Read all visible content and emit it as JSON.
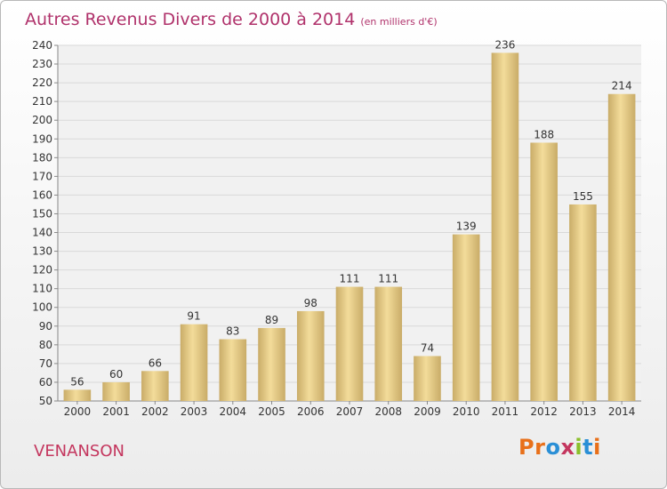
{
  "page": {
    "title": "Autres Revenus Divers de 2000 à 2014",
    "subtitle": "(en milliers d'€)",
    "commune": "VENANSON",
    "logo_text": "Proxiti"
  },
  "colors": {
    "title": "#b0326b",
    "commune": "#c4365e",
    "bar_light": "#f3dc9a",
    "bar_dark": "#c9ac68",
    "grid": "#d9d9d9",
    "logo_letters": [
      "#e8701a",
      "#e8701a",
      "#2a8fd6",
      "#c4365e",
      "#8bbf2b",
      "#2a8fd6",
      "#e8701a"
    ]
  },
  "chart_data": {
    "type": "bar",
    "title": "Autres Revenus Divers de 2000 à 2014",
    "subtitle": "(en milliers d'€)",
    "categories": [
      "2000",
      "2001",
      "2002",
      "2003",
      "2004",
      "2005",
      "2006",
      "2007",
      "2008",
      "2009",
      "2010",
      "2011",
      "2012",
      "2013",
      "2014"
    ],
    "values": [
      56,
      60,
      66,
      91,
      83,
      89,
      98,
      111,
      111,
      74,
      139,
      236,
      188,
      155,
      214
    ],
    "ylim": [
      50,
      240
    ],
    "yticks": [
      50,
      60,
      70,
      80,
      90,
      100,
      110,
      120,
      130,
      140,
      150,
      160,
      170,
      180,
      190,
      200,
      210,
      220,
      230,
      240
    ],
    "grid": true,
    "data_labels": true
  }
}
